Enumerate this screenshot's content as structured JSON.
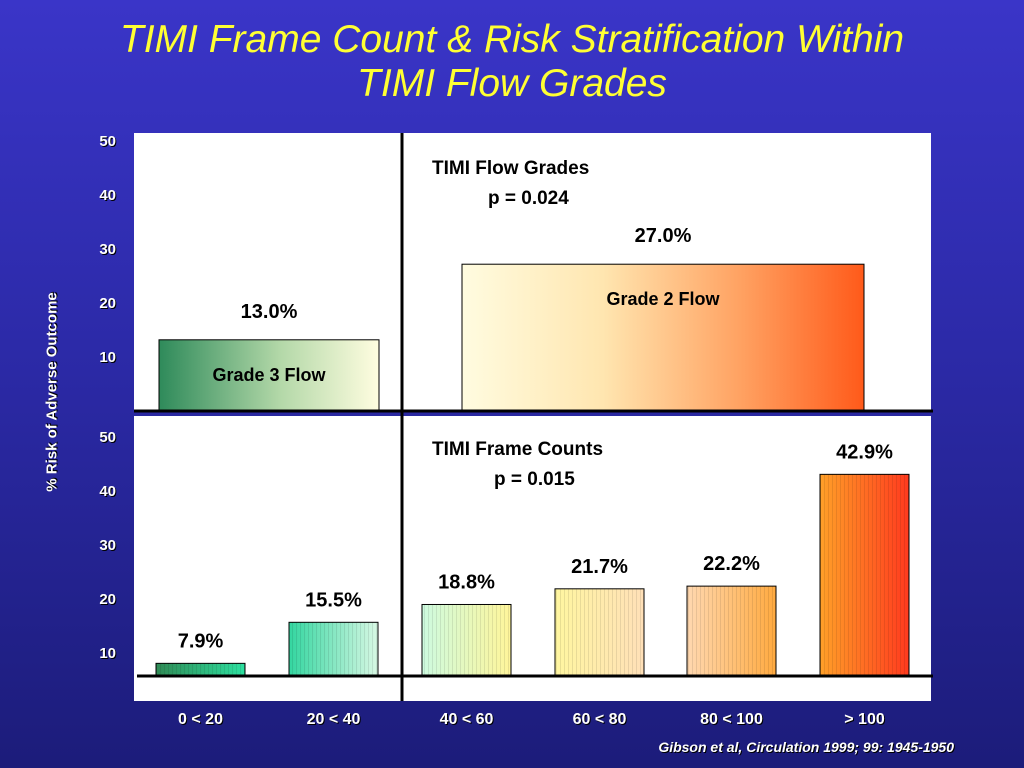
{
  "title_lines": [
    "TIMI Frame Count & Risk Stratification Within",
    "TIMI Flow Grades"
  ],
  "citation": "Gibson et al, Circulation 1999; 99: 1945-1950",
  "chart_data": [
    {
      "type": "bar",
      "panel": "top",
      "ylabel": "% Risk of Adverse Outcome",
      "yticks": [
        10,
        20,
        30,
        40,
        50
      ],
      "ylim": [
        0,
        50
      ],
      "annotation": [
        "TIMI Flow Grades",
        "p = 0.024"
      ],
      "categories": [
        "Grade 3 Flow",
        "Grade 2 Flow"
      ],
      "values": [
        13.0,
        27.0
      ],
      "value_labels": [
        "13.0%",
        "27.0%"
      ],
      "legend": "none",
      "grid": false
    },
    {
      "type": "bar",
      "panel": "bottom",
      "yticks": [
        10,
        20,
        30,
        40,
        50
      ],
      "ylim": [
        0,
        50
      ],
      "annotation": [
        "TIMI Frame Counts",
        "p = 0.015"
      ],
      "categories": [
        "0 < 20",
        "20 < 40",
        "40 < 60",
        "60 < 80",
        "80 < 100",
        "> 100"
      ],
      "values": [
        7.9,
        15.5,
        18.8,
        21.7,
        22.2,
        42.9
      ],
      "value_labels": [
        "7.9%",
        "15.5%",
        "18.8%",
        "21.7%",
        "22.2%",
        "42.9%"
      ],
      "legend": "none",
      "grid": false
    }
  ]
}
